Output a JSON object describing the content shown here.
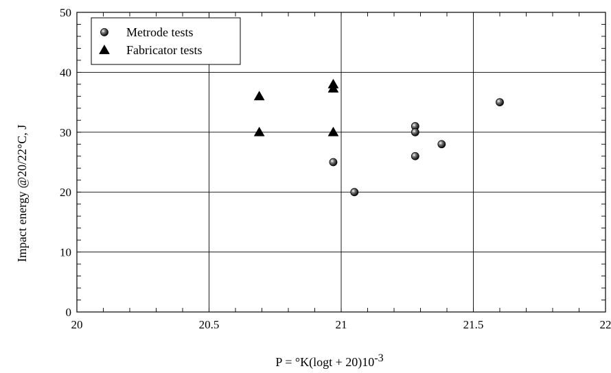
{
  "chart_data": {
    "type": "scatter",
    "title": "",
    "xlabel": "P = °K(logt + 20)10",
    "xlabel_superscript": "-3",
    "ylabel": "Impact energy @20/22°C, J",
    "xlim": [
      20,
      22
    ],
    "ylim": [
      0,
      50
    ],
    "x_ticks": [
      20,
      20.5,
      21,
      21.5,
      22
    ],
    "x_tick_labels": [
      "20",
      "20.5",
      "21",
      "21.5",
      "22"
    ],
    "y_ticks": [
      0,
      10,
      20,
      30,
      40,
      50
    ],
    "y_tick_labels": [
      "0",
      "10",
      "20",
      "30",
      "40",
      "50"
    ],
    "grid": true,
    "legend_position": "top-left",
    "series": [
      {
        "name": "Metrode tests",
        "marker": "sphere",
        "color": "#000000",
        "points": [
          {
            "x": 20.97,
            "y": 25
          },
          {
            "x": 21.05,
            "y": 20
          },
          {
            "x": 21.28,
            "y": 31
          },
          {
            "x": 21.28,
            "y": 30
          },
          {
            "x": 21.28,
            "y": 26
          },
          {
            "x": 21.38,
            "y": 28
          },
          {
            "x": 21.6,
            "y": 35
          }
        ]
      },
      {
        "name": "Fabricator tests",
        "marker": "triangle",
        "color": "#000000",
        "points": [
          {
            "x": 20.69,
            "y": 36
          },
          {
            "x": 20.69,
            "y": 30
          },
          {
            "x": 20.97,
            "y": 38
          },
          {
            "x": 20.97,
            "y": 37.3
          },
          {
            "x": 20.97,
            "y": 30
          }
        ]
      }
    ]
  }
}
